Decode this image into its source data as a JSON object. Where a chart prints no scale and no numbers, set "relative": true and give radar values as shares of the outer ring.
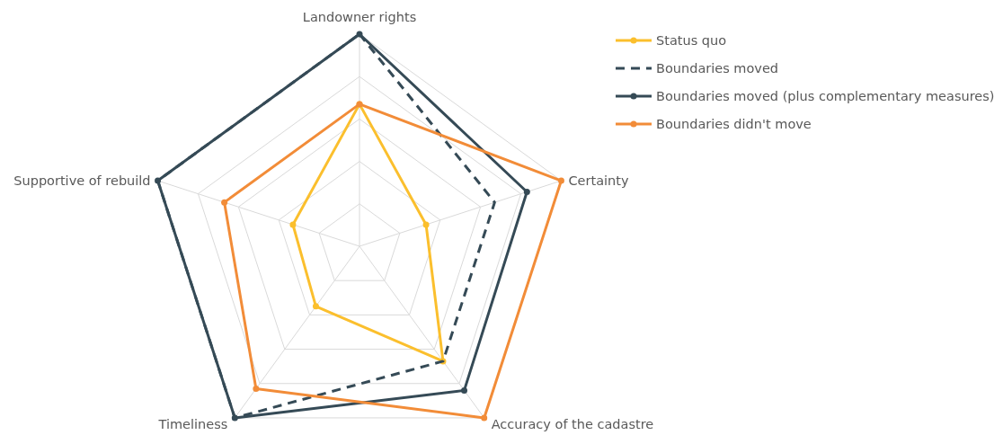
{
  "chart_data": {
    "type": "radar",
    "relative": true,
    "grid": true,
    "legend": "top right",
    "categories": [
      "Landowner rights",
      "Certainty",
      "Accuracy of the cadastre",
      "Timeliness",
      "Supportive of rebuild"
    ],
    "series": [
      {
        "name": "Status quo",
        "color": "#fbbf2d",
        "values": [
          0.67,
          0.33,
          0.67,
          0.35,
          0.33
        ],
        "marker": "circle",
        "line_style": "solid"
      },
      {
        "name": "Boundaries moved",
        "color": "#354a56",
        "values": [
          1,
          0.67,
          0.67,
          1,
          1
        ],
        "marker": "none",
        "line_style": "dashed"
      },
      {
        "name": "Boundaries moved (plus complementary measures)",
        "color": "#354a56",
        "values": [
          1,
          0.83,
          0.84,
          1,
          1
        ],
        "marker": "circle",
        "line_style": "solid"
      },
      {
        "name": "Boundaries didn't move",
        "color": "#f28c38",
        "values": [
          0.67,
          1,
          1,
          0.83,
          0.67
        ],
        "marker": "circle",
        "line_style": "solid"
      }
    ]
  }
}
